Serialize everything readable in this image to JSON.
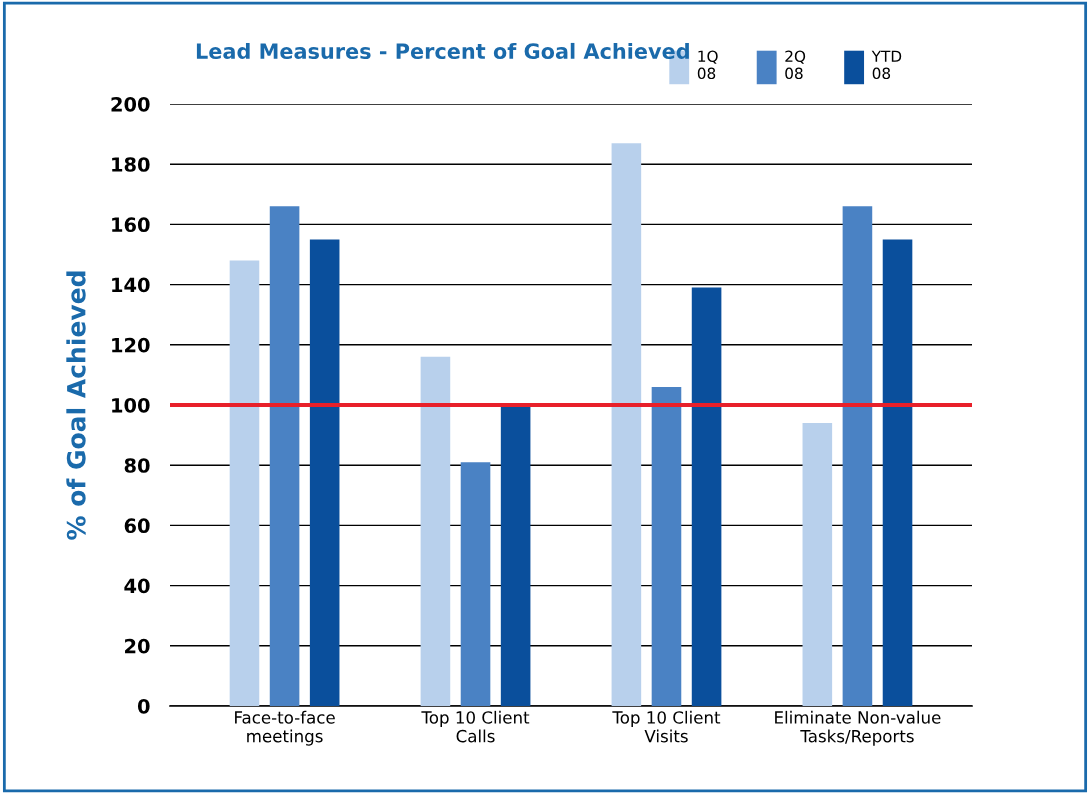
{
  "chart_data": {
    "type": "bar",
    "title": "Lead Measures - Percent of Goal Achieved",
    "ylabel": "% of Goal Achieved",
    "categories": [
      "Face-to-face\nmeetings",
      "Top 10 Client\nCalls",
      "Top 10 Client\nVisits",
      "Eliminate Non-value\nTasks/Reports"
    ],
    "series": [
      {
        "name": "1Q\n08",
        "color": "#b8d0ec",
        "values": [
          148,
          116,
          187,
          94
        ]
      },
      {
        "name": "2Q\n08",
        "color": "#4a82c4",
        "values": [
          166,
          81,
          106,
          166
        ]
      },
      {
        "name": "YTD\n08",
        "color": "#0a4f9c",
        "values": [
          155,
          100,
          139,
          155
        ]
      }
    ],
    "ylim": [
      0,
      200
    ],
    "yticks": [
      0,
      20,
      40,
      60,
      80,
      100,
      120,
      140,
      160,
      180,
      200
    ],
    "ref_lines": [
      {
        "axis": "y",
        "value": 100,
        "color": "#e8202a"
      }
    ],
    "grid": "y",
    "legend": "top right"
  }
}
